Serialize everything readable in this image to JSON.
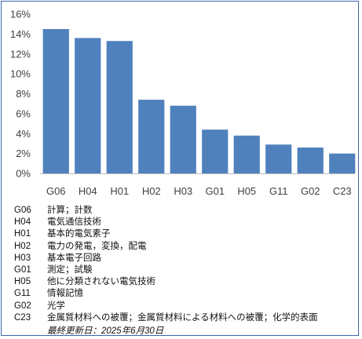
{
  "chart_data": {
    "type": "bar",
    "title": "",
    "xlabel": "",
    "ylabel": "",
    "categories": [
      "G06",
      "H04",
      "H01",
      "H02",
      "H03",
      "G01",
      "H05",
      "G11",
      "G02",
      "C23"
    ],
    "values": [
      14.5,
      13.6,
      13.3,
      7.4,
      6.8,
      4.4,
      3.8,
      2.9,
      2.6,
      2.0
    ],
    "ylim": [
      0,
      16
    ],
    "yticks": [
      0,
      2,
      4,
      6,
      8,
      10,
      12,
      14,
      16
    ],
    "ytick_format": "percent",
    "grid": false,
    "bar_color": "#4f81bd"
  },
  "legend": [
    {
      "code": "G06",
      "desc": "計算；計数"
    },
    {
      "code": "H04",
      "desc": "電気通信技術"
    },
    {
      "code": "H01",
      "desc": "基本的電気素子"
    },
    {
      "code": "H02",
      "desc": "電力の発電，変換，配電"
    },
    {
      "code": "H03",
      "desc": "基本電子回路"
    },
    {
      "code": "G01",
      "desc": "測定；試験"
    },
    {
      "code": "H05",
      "desc": "他に分類されない電気技術"
    },
    {
      "code": "G11",
      "desc": "情報記憶"
    },
    {
      "code": "G02",
      "desc": "光学"
    },
    {
      "code": "C23",
      "desc": "金属質材料への被覆；金属質材料による材料への被覆；化学的表面"
    }
  ],
  "updated": "最終更新日：2025年6月30日",
  "colors": {
    "border": "#3a66a8",
    "axis": "#bfbfbf",
    "text": "#404040"
  }
}
